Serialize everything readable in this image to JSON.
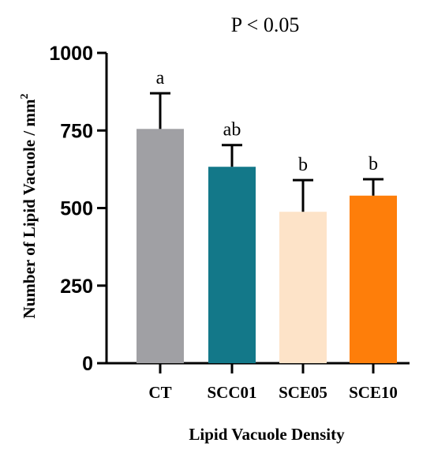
{
  "chart_data": {
    "type": "bar",
    "title": "P < 0.05",
    "xlabel": "Lipid Vacuole Density",
    "ylabel": "Number of Lipid Vacuole / mm",
    "ylabel_superscript": "2",
    "categories": [
      "CT",
      "SCC01",
      "SCE05",
      "SCE10"
    ],
    "values": [
      755,
      633,
      488,
      540
    ],
    "error_upper": [
      870,
      703,
      590,
      593
    ],
    "significance_letters": [
      "a",
      "ab",
      "b",
      "b"
    ],
    "colors": [
      "#a0a0a4",
      "#137889",
      "#fde3c8",
      "#fe7e0a"
    ],
    "ylim": [
      0,
      1000
    ],
    "yticks": [
      "0",
      "250",
      "500",
      "750",
      "1000"
    ],
    "ytick_values": [
      0,
      250,
      500,
      750,
      1000
    ],
    "grid": false
  }
}
